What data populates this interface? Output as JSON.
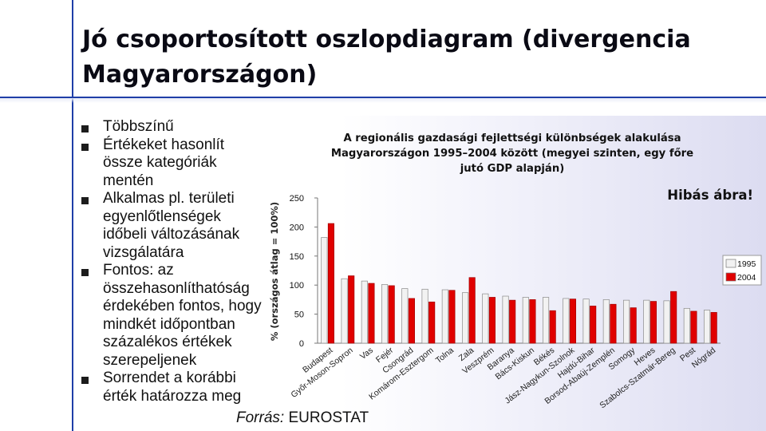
{
  "slide": {
    "title": "Jó csoportosított oszlopdiagram (divergencia Magyarországon)",
    "bullets": [
      "Többszínű",
      "Értékeket hasonlít össze kategóriák mentén",
      "Alkalmas pl. területi egyenlőtlenségek időbeli változásának vizsgálatára",
      "Fontos: az összehasonlíthatóság érdekében fontos, hogy mindkét időpontban százalékos értékek szerepeljenek",
      "Sorrendet a korábbi érték határozza meg"
    ],
    "source_label": "Forrás:",
    "source_value": " EUROSTAT",
    "bullet_icon": "square-bullet-icon"
  },
  "colors": {
    "series_1995": "#f2f2f2",
    "series_2004": "#e00000",
    "accent": "#1f3fa8"
  },
  "chart_data": {
    "type": "bar",
    "title_lines": [
      "A regionális gazdasági fejlettségi különbségek alakulása",
      "Magyarországon 1995–2004 között (megyei szinten, egy főre",
      "jutó GDP alapján)"
    ],
    "ylabel": "% (országos átlag = 100%)",
    "xlabel": "",
    "ylim": [
      0,
      250
    ],
    "yticks": [
      0,
      50,
      100,
      150,
      200,
      250
    ],
    "grid": false,
    "legend": "right",
    "annotation": "Hibás ábra!",
    "categories": [
      "Budapest",
      "Győr-Moson-Sopron",
      "Vas",
      "Fejér",
      "Csongrád",
      "Komárom-Esztergom",
      "Tolna",
      "Zala",
      "Veszprém",
      "Baranya",
      "Bács-Kiskun",
      "Békés",
      "Jász-Nagykun-Szolnok",
      "Hajdú-Bihar",
      "Borsod-Abaúj-Zemplén",
      "Somogy",
      "Heves",
      "Szabolcs-Szatmár-Bereg",
      "Pest",
      "Nógrád"
    ],
    "series": [
      {
        "name": "1995",
        "values": [
          182,
          111,
          107,
          101,
          94,
          93,
          92,
          87,
          85,
          81,
          79,
          79,
          77,
          76,
          75,
          74,
          74,
          73,
          60,
          57
        ]
      },
      {
        "name": "2004",
        "values": [
          206,
          116,
          103,
          99,
          77,
          71,
          91,
          113,
          79,
          74,
          75,
          56,
          76,
          64,
          67,
          61,
          72,
          89,
          55,
          53
        ]
      }
    ]
  }
}
